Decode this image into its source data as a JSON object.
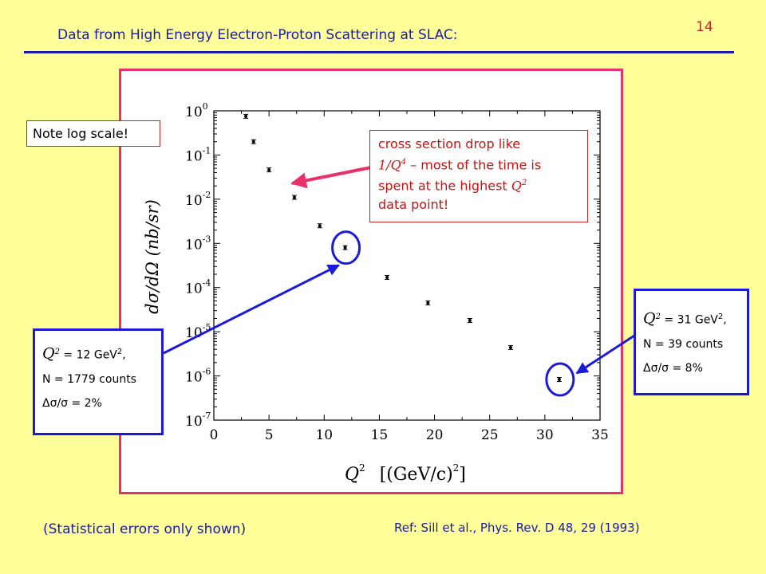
{
  "slide": {
    "title": "Data from High Energy Electron-Proton Scattering at SLAC:",
    "page_number": "14",
    "note": "Note log scale!",
    "footnote": "(Statistical errors only shown)",
    "reference": "Ref:  Sill et al., Phys. Rev. D 48, 29 (1993)"
  },
  "callout": {
    "line1": "cross section drop like",
    "line2_math": "1/Q",
    "line2_sup": "4",
    "line2_rest": " – most of the time is",
    "line3_text": "spent at the highest ",
    "line3_math": "Q",
    "line3_sup": "2",
    "line4": "data point!"
  },
  "box_left": {
    "q_sym": "Q",
    "q_sup": "2",
    "q_val": " = 12 GeV",
    "q_unit_sup": "2",
    "q_tail": ",",
    "counts": "N = 1779 counts",
    "err": "Δσ/σ = 2%"
  },
  "box_right": {
    "q_sym": "Q",
    "q_sup": "2",
    "q_val": " = 31 GeV",
    "q_unit_sup": "2",
    "q_tail": ",",
    "counts": "N = 39 counts",
    "err": "Δσ/σ = 8%"
  },
  "colors": {
    "background": "#ffff99",
    "title_blue": "#1a1aa8",
    "frame_pink": "#e8306a",
    "arrow_pink": "#e8306a",
    "highlight_blue": "#1a1ad8",
    "callout_red": "#cc1010"
  },
  "chart_data": {
    "type": "scatter",
    "xlabel_sym": "Q",
    "xlabel_sup": "2",
    "xlabel_unit": "[(GeV/c)",
    "xlabel_unit_sup": "2",
    "xlabel_unit_end": "]",
    "ylabel": "dσ/dΩ  (nb/sr)",
    "x_scale": "linear",
    "y_scale": "log",
    "xlim": [
      0,
      35
    ],
    "ylim": [
      1e-07,
      1
    ],
    "x_ticks": [
      "0",
      "5",
      "10",
      "15",
      "20",
      "25",
      "30",
      "35"
    ],
    "y_ticks": [
      {
        "base": "10",
        "exp": "0"
      },
      {
        "base": "10",
        "exp": "-1"
      },
      {
        "base": "10",
        "exp": "-2"
      },
      {
        "base": "10",
        "exp": "-3"
      },
      {
        "base": "10",
        "exp": "-4"
      },
      {
        "base": "10",
        "exp": "-5"
      },
      {
        "base": "10",
        "exp": "-6"
      },
      {
        "base": "10",
        "exp": "-7"
      }
    ],
    "points": [
      {
        "x": 2.9,
        "y": 0.75,
        "err": 0.015
      },
      {
        "x": 3.6,
        "y": 0.2,
        "err": 0.004
      },
      {
        "x": 5.0,
        "y": 0.046,
        "err": 0.0009
      },
      {
        "x": 7.3,
        "y": 0.011,
        "err": 0.0002
      },
      {
        "x": 9.6,
        "y": 0.0025,
        "err": 5e-05
      },
      {
        "x": 11.9,
        "y": 0.0008,
        "err": 1.6e-05
      },
      {
        "x": 15.7,
        "y": 0.00017,
        "err": 3.4e-06
      },
      {
        "x": 19.4,
        "y": 4.5e-05,
        "err": 1.5e-06
      },
      {
        "x": 23.2,
        "y": 1.8e-05,
        "err": 8e-07
      },
      {
        "x": 26.9,
        "y": 4.4e-06,
        "err": 3e-07
      },
      {
        "x": 31.3,
        "y": 8.3e-07,
        "err": 7e-08
      }
    ],
    "highlighted": [
      5,
      10
    ]
  }
}
